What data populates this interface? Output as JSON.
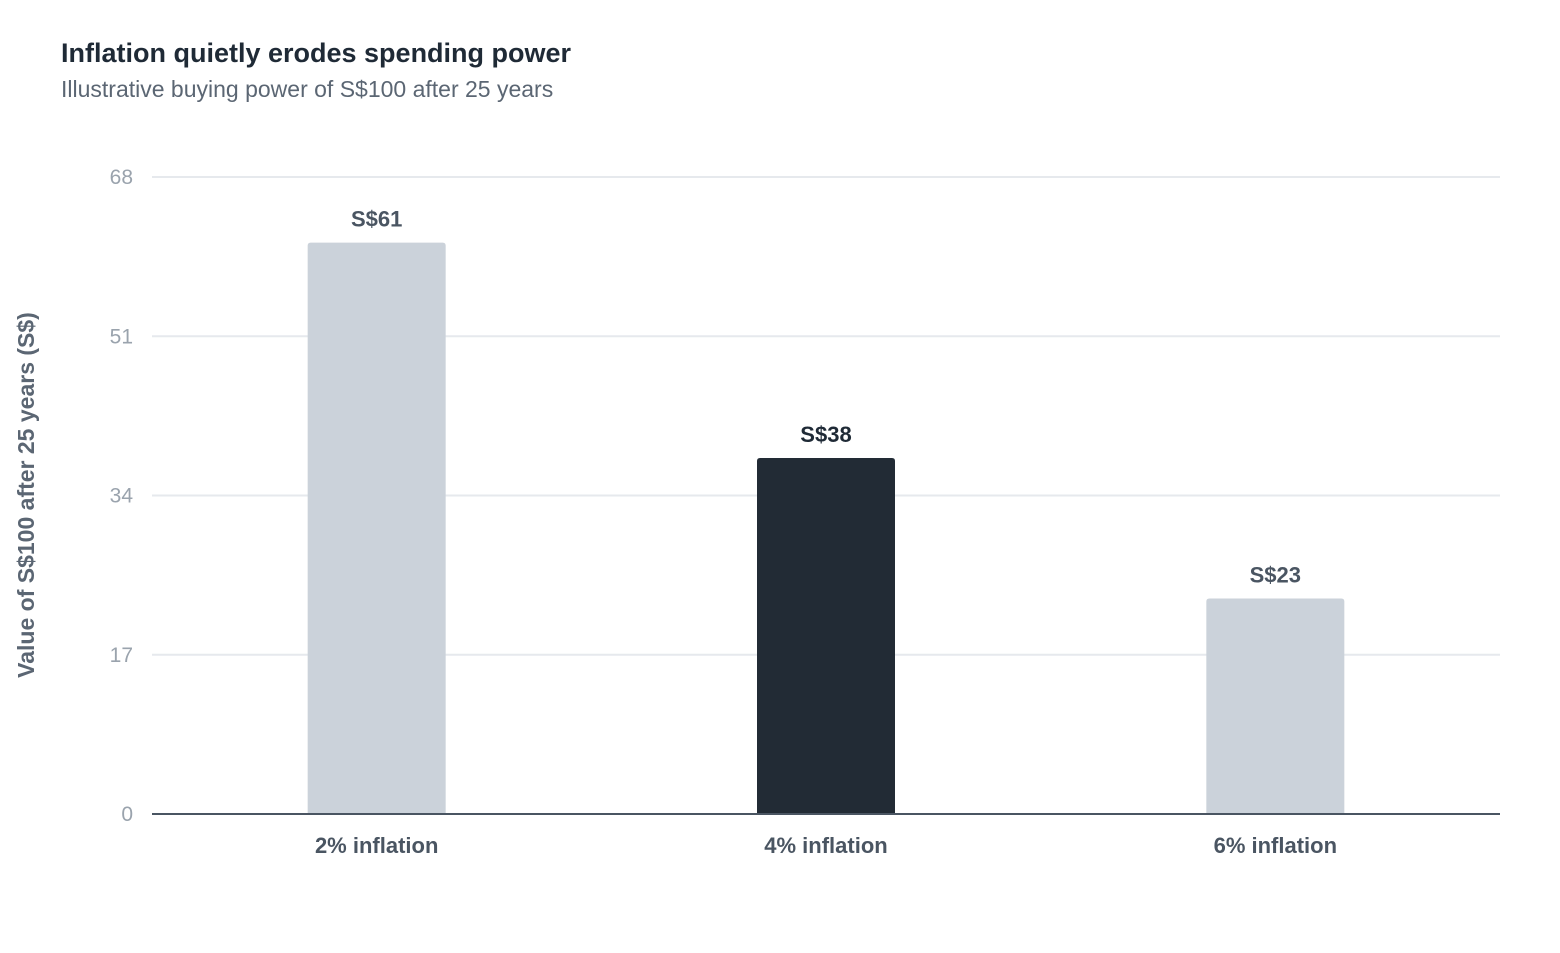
{
  "chart_data": {
    "type": "bar",
    "title": "Inflation quietly erodes spending power",
    "subtitle": "Illustrative buying power of S$100 after 25 years",
    "xlabel": "",
    "ylabel": "Value of S$100 after 25 years (S$)",
    "categories": [
      "2% inflation",
      "4% inflation",
      "6% inflation"
    ],
    "values": [
      61,
      38,
      23
    ],
    "value_labels": [
      "S$61",
      "S$38",
      "S$23"
    ],
    "highlight_index": 1,
    "ylim": [
      0,
      68
    ],
    "yticks": [
      0,
      17,
      34,
      51,
      68
    ],
    "grid": true,
    "legend": "none"
  },
  "colors": {
    "bar_default": "#cbd2da",
    "bar_highlight": "#222b35",
    "label_default": "#4a5562",
    "label_highlight": "#1f2a36",
    "grid": "#e6e9ed",
    "axis": "#4a5562"
  }
}
